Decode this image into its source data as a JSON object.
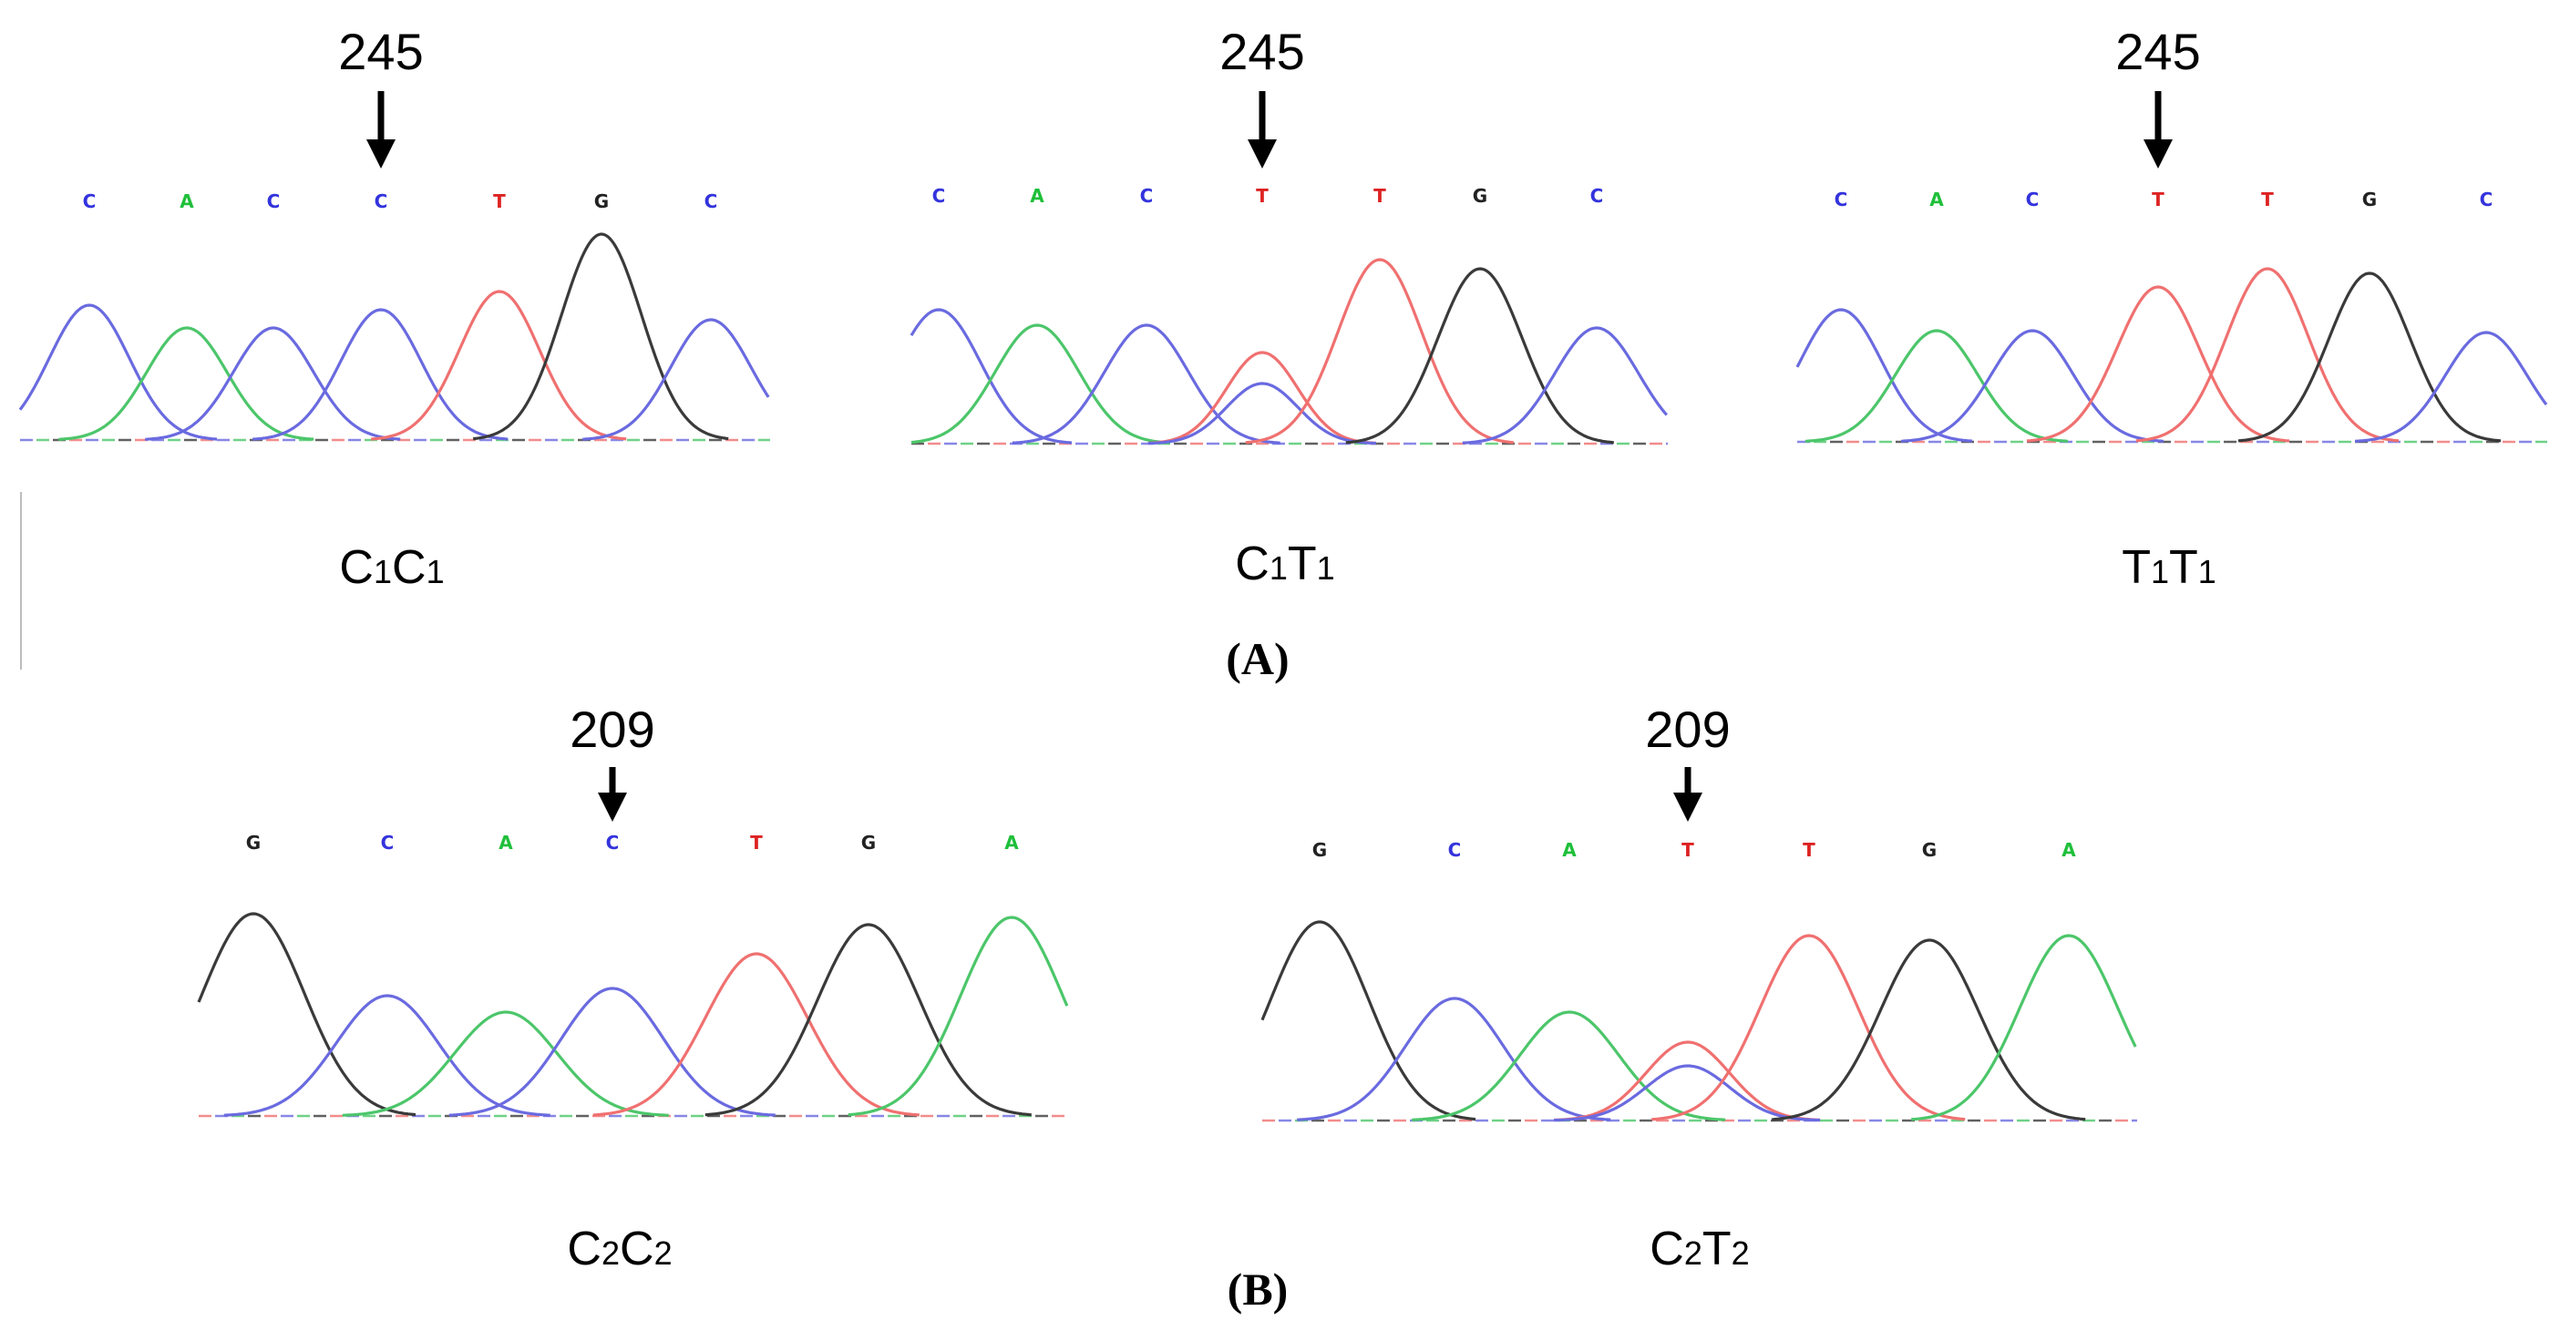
{
  "figure": {
    "panels": [
      {
        "id": "A",
        "label": "(A)",
        "position_label": "245",
        "traces": [
          {
            "genotype": {
              "base1": "C",
              "sub1": "1",
              "base2": "C",
              "sub2": "1"
            },
            "bases": [
              "C",
              "A",
              "C",
              "C",
              "T",
              "G",
              "C"
            ]
          },
          {
            "genotype": {
              "base1": "C",
              "sub1": "1",
              "base2": "T",
              "sub2": "1"
            },
            "bases": [
              "C",
              "A",
              "C",
              "T",
              "T",
              "G",
              "C"
            ]
          },
          {
            "genotype": {
              "base1": "T",
              "sub1": "1",
              "base2": "T",
              "sub2": "1"
            },
            "bases": [
              "C",
              "A",
              "C",
              "T",
              "T",
              "G",
              "C"
            ]
          }
        ]
      },
      {
        "id": "B",
        "label": "(B)",
        "position_label": "209",
        "traces": [
          {
            "genotype": {
              "base1": "C",
              "sub1": "2",
              "base2": "C",
              "sub2": "2"
            },
            "bases": [
              "G",
              "C",
              "A",
              "C",
              "T",
              "G",
              "A"
            ]
          },
          {
            "genotype": {
              "base1": "C",
              "sub1": "2",
              "base2": "T",
              "sub2": "2"
            },
            "bases": [
              "G",
              "C",
              "A",
              "T",
              "T",
              "G",
              "A"
            ]
          }
        ]
      }
    ],
    "colors": {
      "A": "#1fbf3a",
      "C": "#3333dd",
      "G": "#222222",
      "T": "#dd2222"
    },
    "trace_colors": {
      "A": "#4cc66a",
      "C": "#6a6ae0",
      "G": "#3a3a3a",
      "T": "#f07070"
    }
  }
}
